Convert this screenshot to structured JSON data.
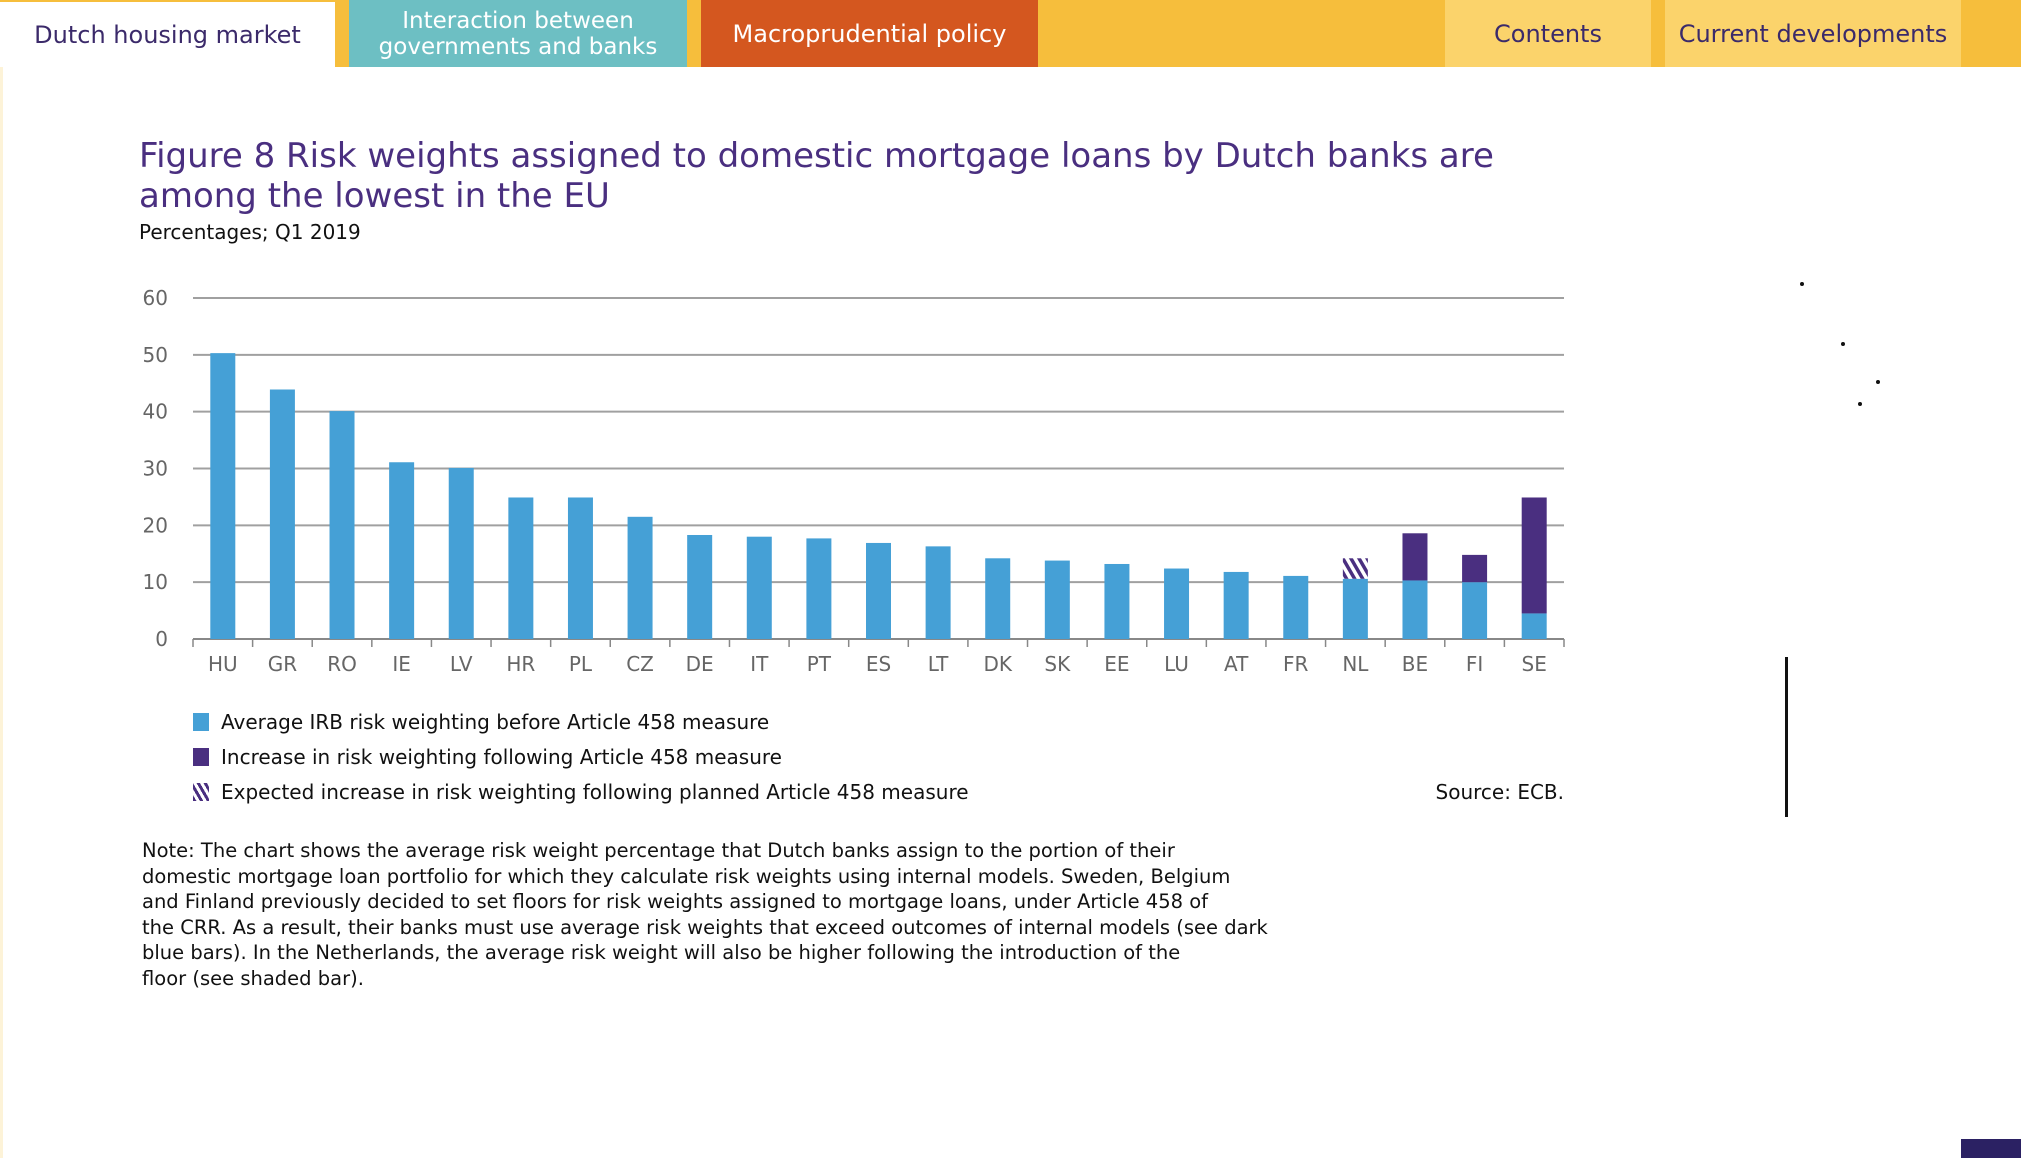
{
  "nav": {
    "tabs": [
      {
        "label": "Dutch housing market",
        "color": "#ffffff"
      },
      {
        "label": "Interaction between governments and banks",
        "color": "#6dbfc3"
      },
      {
        "label": "Macroprudential policy",
        "color": "#d4571f"
      },
      {
        "label": "Contents",
        "color": "#fbd36b"
      },
      {
        "label": "Current developments",
        "color": "#fbd36b"
      }
    ]
  },
  "chart_data": {
    "type": "bar",
    "stacked": true,
    "title": "Figure 8  Risk weights assigned to domestic mortgage loans by Dutch banks are among the lowest in the EU",
    "subtitle": "Percentages; Q1 2019",
    "categories": [
      "HU",
      "GR",
      "RO",
      "IE",
      "LV",
      "HR",
      "PL",
      "CZ",
      "DE",
      "IT",
      "PT",
      "ES",
      "LT",
      "DK",
      "SK",
      "EE",
      "LU",
      "AT",
      "FR",
      "NL",
      "BE",
      "FI",
      "SE"
    ],
    "series": [
      {
        "name": "Average IRB risk weighting before Article 458 measure",
        "color": "#45a0d6",
        "pattern": "solid",
        "values": [
          50.3,
          43.9,
          40.1,
          31.1,
          30.1,
          24.9,
          24.9,
          21.5,
          18.3,
          18.0,
          17.7,
          16.9,
          16.3,
          14.2,
          13.8,
          13.2,
          12.4,
          11.8,
          11.1,
          10.6,
          10.3,
          10.0,
          4.5
        ]
      },
      {
        "name": "Increase in risk weighting following Article 458 measure",
        "color": "#4a2f80",
        "pattern": "solid",
        "values": [
          0,
          0,
          0,
          0,
          0,
          0,
          0,
          0,
          0,
          0,
          0,
          0,
          0,
          0,
          0,
          0,
          0,
          0,
          0,
          0,
          8.3,
          4.8,
          20.4
        ]
      },
      {
        "name": "Expected increase in risk weighting following planned Article 458 measure",
        "color": "#4a2f80",
        "pattern": "hatched",
        "values": [
          0,
          0,
          0,
          0,
          0,
          0,
          0,
          0,
          0,
          0,
          0,
          0,
          0,
          0,
          0,
          0,
          0,
          0,
          0,
          3.6,
          0,
          0,
          0
        ]
      }
    ],
    "yticks": [
      0,
      10,
      20,
      30,
      40,
      50,
      60
    ],
    "ylim": [
      0,
      60
    ],
    "grid": true,
    "legend_placement": "bottom-left",
    "source": "Source: ECB.",
    "note": [
      "Note: The chart shows the average risk weight percentage that Dutch banks assign to the portion of their",
      "domestic mortgage loan portfolio for which they calculate risk weights using internal models. Sweden, Belgium",
      "and Finland previously decided to set floors for risk weights assigned to mortgage loans, under Article 458 of",
      "the CRR. As a result, their banks must use average risk weights that exceed outcomes of internal models (see dark",
      "blue bars). In the Netherlands, the average risk weight will also be higher following the introduction of the",
      "floor (see shaded bar)."
    ]
  }
}
